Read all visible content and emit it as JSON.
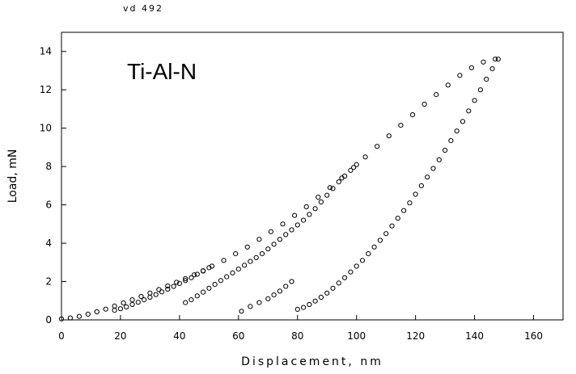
{
  "chart_data": {
    "type": "scatter",
    "title": "vd 492",
    "annotation": "Ti-Al-N",
    "xlabel": "Displacement, nm",
    "ylabel": "Load, mN",
    "xlim": [
      0,
      170
    ],
    "ylim": [
      0,
      15
    ],
    "xticks": [
      0,
      20,
      40,
      60,
      80,
      100,
      120,
      140,
      160
    ],
    "yticks": [
      0,
      2,
      4,
      6,
      8,
      10,
      12,
      14
    ],
    "grid": false,
    "marker": "open-circle",
    "series": [
      {
        "values": [
          [
            0,
            0.05
          ],
          [
            3,
            0.1
          ],
          [
            6,
            0.18
          ],
          [
            9,
            0.3
          ],
          [
            12,
            0.42
          ],
          [
            15,
            0.56
          ],
          [
            18,
            0.72
          ],
          [
            21,
            0.88
          ],
          [
            24,
            1.05
          ],
          [
            27,
            1.22
          ],
          [
            30,
            1.4
          ],
          [
            33,
            1.58
          ],
          [
            36,
            1.77
          ],
          [
            39,
            1.96
          ],
          [
            42,
            2.15
          ],
          [
            45,
            2.35
          ],
          [
            48,
            2.56
          ],
          [
            51,
            2.8
          ],
          [
            55,
            3.1
          ],
          [
            59,
            3.45
          ],
          [
            63,
            3.8
          ],
          [
            67,
            4.2
          ],
          [
            71,
            4.6
          ],
          [
            75,
            5.0
          ],
          [
            79,
            5.45
          ],
          [
            83,
            5.9
          ],
          [
            87,
            6.4
          ],
          [
            91,
            6.9
          ],
          [
            95,
            7.4
          ],
          [
            99,
            7.95
          ],
          [
            103,
            8.5
          ],
          [
            107,
            9.05
          ],
          [
            111,
            9.6
          ],
          [
            115,
            10.15
          ],
          [
            119,
            10.7
          ],
          [
            123,
            11.25
          ],
          [
            127,
            11.75
          ],
          [
            131,
            12.25
          ],
          [
            135,
            12.75
          ],
          [
            139,
            13.15
          ],
          [
            143,
            13.45
          ],
          [
            147,
            13.6
          ]
        ]
      },
      {
        "values": [
          [
            148,
            13.6
          ],
          [
            146,
            13.1
          ],
          [
            144,
            12.55
          ],
          [
            142,
            12.0
          ],
          [
            140,
            11.45
          ],
          [
            138,
            10.9
          ],
          [
            136,
            10.35
          ],
          [
            134,
            9.85
          ],
          [
            132,
            9.35
          ],
          [
            130,
            8.85
          ],
          [
            128,
            8.35
          ],
          [
            126,
            7.9
          ],
          [
            124,
            7.45
          ],
          [
            122,
            7.0
          ],
          [
            120,
            6.55
          ],
          [
            118,
            6.1
          ],
          [
            116,
            5.7
          ],
          [
            114,
            5.3
          ],
          [
            112,
            4.9
          ],
          [
            110,
            4.5
          ],
          [
            108,
            4.15
          ],
          [
            106,
            3.8
          ],
          [
            104,
            3.45
          ],
          [
            102,
            3.1
          ],
          [
            100,
            2.8
          ],
          [
            98,
            2.5
          ],
          [
            96,
            2.2
          ],
          [
            94,
            1.92
          ],
          [
            92,
            1.65
          ],
          [
            90,
            1.4
          ],
          [
            88,
            1.18
          ],
          [
            86,
            0.98
          ],
          [
            84,
            0.8
          ],
          [
            82,
            0.65
          ],
          [
            80,
            0.55
          ],
          [
            78,
            2.0
          ],
          [
            76,
            1.75
          ],
          [
            74,
            1.5
          ],
          [
            72,
            1.3
          ],
          [
            70,
            1.1
          ],
          [
            67,
            0.9
          ],
          [
            64,
            0.7
          ],
          [
            61,
            0.45
          ]
        ]
      },
      {
        "values": [
          [
            42,
            0.9
          ],
          [
            44,
            1.05
          ],
          [
            46,
            1.25
          ],
          [
            48,
            1.45
          ],
          [
            50,
            1.65
          ],
          [
            52,
            1.85
          ],
          [
            54,
            2.05
          ],
          [
            56,
            2.25
          ],
          [
            58,
            2.45
          ],
          [
            60,
            2.65
          ],
          [
            62,
            2.85
          ],
          [
            64,
            3.05
          ],
          [
            66,
            3.25
          ],
          [
            68,
            3.45
          ],
          [
            70,
            3.7
          ],
          [
            72,
            3.95
          ],
          [
            74,
            4.2
          ],
          [
            76,
            4.45
          ],
          [
            78,
            4.7
          ],
          [
            80,
            4.95
          ],
          [
            82,
            5.2
          ],
          [
            84,
            5.5
          ],
          [
            86,
            5.8
          ],
          [
            88,
            6.15
          ],
          [
            90,
            6.5
          ],
          [
            92,
            6.85
          ],
          [
            94,
            7.2
          ],
          [
            96,
            7.5
          ],
          [
            98,
            7.8
          ],
          [
            100,
            8.1
          ]
        ]
      },
      {
        "values": [
          [
            18,
            0.5
          ],
          [
            20,
            0.58
          ],
          [
            22,
            0.68
          ],
          [
            24,
            0.8
          ],
          [
            26,
            0.92
          ],
          [
            28,
            1.05
          ],
          [
            30,
            1.18
          ],
          [
            32,
            1.32
          ],
          [
            34,
            1.46
          ],
          [
            36,
            1.6
          ],
          [
            38,
            1.75
          ],
          [
            40,
            1.9
          ],
          [
            42,
            2.05
          ],
          [
            44,
            2.2
          ],
          [
            46,
            2.38
          ],
          [
            48,
            2.55
          ],
          [
            50,
            2.72
          ]
        ]
      }
    ]
  }
}
